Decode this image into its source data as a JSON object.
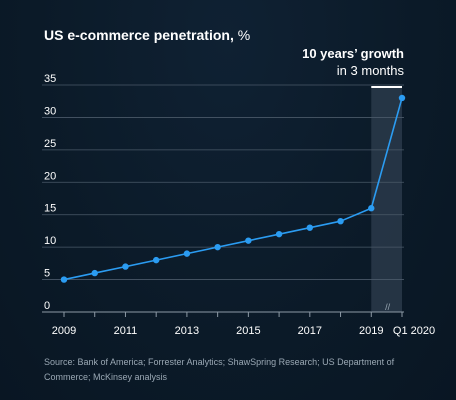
{
  "header": {
    "title_main": "US e-commerce penetration,",
    "title_unit": "%"
  },
  "annotation": {
    "line1": "10 years’ growth",
    "line2": "in 3 months"
  },
  "footer": {
    "source": "Source: Bank of America; Forrester Analytics; ShawSpring Research; US Department of Commerce; McKinsey analysis"
  },
  "chart_data": {
    "type": "line",
    "x": [
      "2009",
      "2010",
      "2011",
      "2012",
      "2013",
      "2014",
      "2015",
      "2016",
      "2017",
      "2018",
      "2019",
      "Q1 2020"
    ],
    "series": [
      {
        "values": [
          5,
          6,
          7,
          8,
          9,
          10,
          11,
          12,
          13,
          14,
          16,
          33
        ]
      }
    ],
    "x_tick_labels": [
      "2009",
      "2011",
      "2013",
      "2015",
      "2017",
      "2019",
      "Q1 2020"
    ],
    "y_ticks": [
      0,
      5,
      10,
      15,
      20,
      25,
      30,
      35
    ],
    "ylim": [
      0,
      35
    ],
    "grid": "horizontal",
    "highlight_range": [
      "2019",
      "Q1 2020"
    ],
    "axis_break_symbol": "//",
    "colors": {
      "line": "#2b9cf2",
      "grid": "#4a5968",
      "highlight": "#2a3a4a",
      "highlight_top": "#ffffff",
      "tick_text": "#ffffff"
    }
  }
}
